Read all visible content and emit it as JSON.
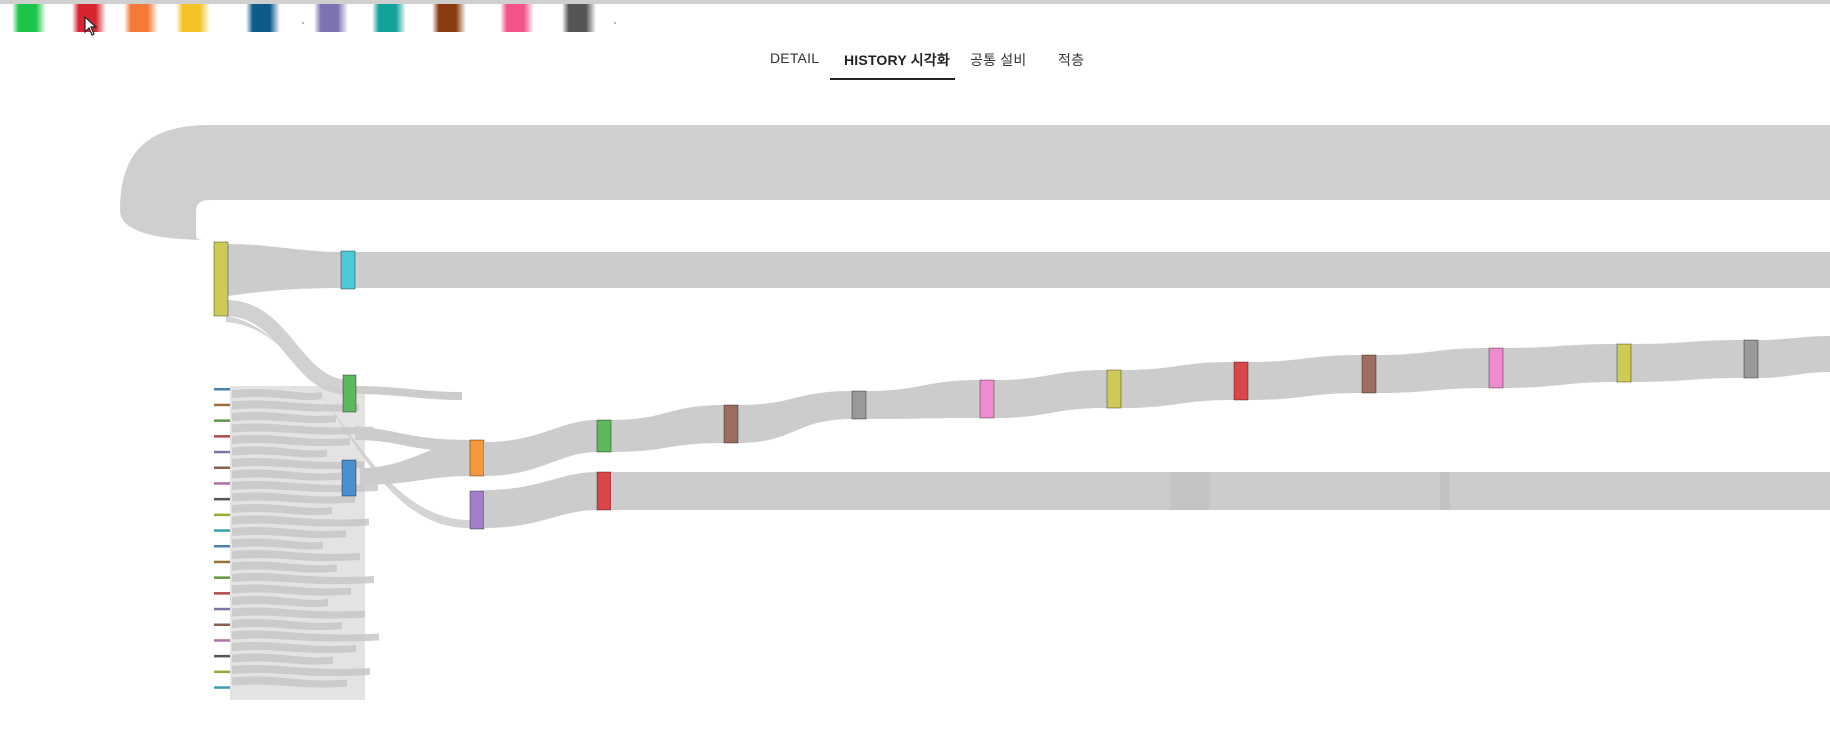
{
  "palette": {
    "swatches": [
      {
        "name": "green",
        "color": "#1cc44a"
      },
      {
        "name": "red",
        "color": "#d9242f"
      },
      {
        "name": "orange",
        "color": "#f57a3a"
      },
      {
        "name": "yellow",
        "color": "#f2c227"
      },
      {
        "name": "navy",
        "color": "#0e5a8a"
      },
      {
        "name": "lavender",
        "color": "#7b74b0"
      },
      {
        "name": "teal",
        "color": "#12a29a"
      },
      {
        "name": "brown",
        "color": "#8a3c10"
      },
      {
        "name": "pink",
        "color": "#f4538a"
      },
      {
        "name": "dark-gray",
        "color": "#555555"
      }
    ]
  },
  "tabs": [
    {
      "label": "DETAIL",
      "active": false
    },
    {
      "label": "HISTORY 시각화",
      "active": true
    },
    {
      "label": "공통 설비",
      "active": false
    },
    {
      "label": "적층",
      "active": false
    }
  ],
  "diagram": {
    "type": "sankey",
    "node_colors": {
      "yellow": "#cdcb55",
      "cyan": "#4dc8d6",
      "green": "#5cb85c",
      "blue": "#4a90cc",
      "orange": "#f59a3c",
      "purple": "#a27fc9",
      "red": "#d9464a",
      "brown": "#9b6e60",
      "gray": "#999999",
      "pink": "#ef8ccf"
    },
    "link_color": "#cccccc",
    "legend_tick_colors": [
      "#4a7fb0",
      "#9b6e3b",
      "#5a9a4a",
      "#b04a4a",
      "#7f72a8",
      "#8a6050",
      "#b070a0",
      "#555555",
      "#9ea63a",
      "#3aa0b0"
    ]
  }
}
